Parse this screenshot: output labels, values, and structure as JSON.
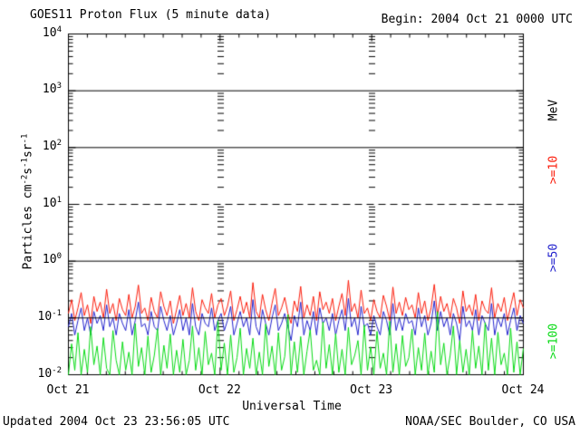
{
  "header": {
    "title": "GOES11 Proton Flux (5 minute data)",
    "begin": "Begin: 2004 Oct 21 0000 UTC"
  },
  "footer": {
    "updated": "Updated 2004 Oct 23 23:56:05 UTC",
    "credit": "NOAA/SEC Boulder, CO USA"
  },
  "chart_data": {
    "type": "line",
    "title": "GOES11 Proton Flux (5 minute data)",
    "xlabel": "Universal Time",
    "ylabel": {
      "text": "Particles cm-2s-1sr-1",
      "parts": [
        {
          "t": "Particles cm",
          "sup": false
        },
        {
          "t": "-2",
          "sup": true
        },
        {
          "t": "s",
          "sup": false
        },
        {
          "t": "-1",
          "sup": true
        },
        {
          "t": "sr",
          "sup": false
        },
        {
          "t": "-1",
          "sup": true
        }
      ]
    },
    "x_tick_labels": [
      "Oct 21",
      "Oct 22",
      "Oct 23",
      "Oct 24"
    ],
    "x_range_days": 3,
    "x_minor_tick_hours": 3,
    "y_axis": {
      "scale": "log",
      "exp_min": -2,
      "exp_max": 4,
      "tick_exponents": [
        4,
        3,
        2,
        1,
        0,
        -1,
        -2
      ]
    },
    "grid": {
      "solid_exponents": [
        3,
        2,
        0
      ],
      "dashed_exponents": [
        1
      ],
      "solid_over_data_exponents": [
        -1
      ],
      "interior_minor_tick_day_positions": [
        1,
        2
      ]
    },
    "right_labels": {
      "unit": {
        "label": "MeV",
        "color": "#000000",
        "y_center": 122
      },
      "entries": [
        {
          "label": ">=10",
          "color": "#fb1c0b",
          "y_center": 188
        },
        {
          "label": ">=50",
          "color": "#2222cd",
          "y_center": 285
        },
        {
          "label": ">=100",
          "color": "#07da14",
          "y_center": 377
        }
      ]
    },
    "sample_interval_minutes": 30,
    "series": [
      {
        "name": ">=10 MeV",
        "color": "#fb1c0b",
        "values": [
          0.12,
          0.21,
          0.09,
          0.15,
          0.28,
          0.11,
          0.17,
          0.08,
          0.24,
          0.13,
          0.19,
          0.1,
          0.32,
          0.12,
          0.18,
          0.09,
          0.22,
          0.14,
          0.11,
          0.26,
          0.1,
          0.16,
          0.38,
          0.12,
          0.15,
          0.09,
          0.23,
          0.13,
          0.1,
          0.29,
          0.16,
          0.11,
          0.2,
          0.08,
          0.14,
          0.25,
          0.11,
          0.18,
          0.1,
          0.34,
          0.13,
          0.09,
          0.21,
          0.15,
          0.12,
          0.27,
          0.1,
          0.17,
          0.22,
          0.11,
          0.16,
          0.3,
          0.09,
          0.14,
          0.24,
          0.12,
          0.19,
          0.1,
          0.42,
          0.13,
          0.1,
          0.26,
          0.14,
          0.09,
          0.18,
          0.33,
          0.11,
          0.15,
          0.23,
          0.12,
          0.08,
          0.2,
          0.13,
          0.36,
          0.1,
          0.17,
          0.11,
          0.24,
          0.09,
          0.29,
          0.14,
          0.19,
          0.12,
          0.22,
          0.09,
          0.16,
          0.27,
          0.11,
          0.46,
          0.13,
          0.18,
          0.1,
          0.31,
          0.12,
          0.15,
          0.09,
          0.21,
          0.13,
          0.1,
          0.25,
          0.16,
          0.09,
          0.35,
          0.12,
          0.19,
          0.11,
          0.23,
          0.14,
          0.17,
          0.1,
          0.28,
          0.12,
          0.2,
          0.09,
          0.15,
          0.39,
          0.11,
          0.24,
          0.13,
          0.18,
          0.1,
          0.22,
          0.15,
          0.08,
          0.3,
          0.13,
          0.17,
          0.11,
          0.26,
          0.09,
          0.2,
          0.14,
          0.12,
          0.34,
          0.1,
          0.18,
          0.13,
          0.23,
          0.09,
          0.16,
          0.28,
          0.11,
          0.21,
          0.15
        ]
      },
      {
        "name": ">=50 MeV",
        "color": "#2222cd",
        "values": [
          0.07,
          0.12,
          0.05,
          0.09,
          0.15,
          0.06,
          0.1,
          0.05,
          0.13,
          0.08,
          0.11,
          0.06,
          0.17,
          0.07,
          0.1,
          0.05,
          0.12,
          0.08,
          0.06,
          0.14,
          0.05,
          0.09,
          0.19,
          0.07,
          0.08,
          0.05,
          0.13,
          0.07,
          0.06,
          0.16,
          0.09,
          0.06,
          0.11,
          0.05,
          0.08,
          0.14,
          0.06,
          0.1,
          0.05,
          0.18,
          0.07,
          0.05,
          0.12,
          0.08,
          0.07,
          0.15,
          0.06,
          0.09,
          0.12,
          0.06,
          0.09,
          0.16,
          0.05,
          0.08,
          0.13,
          0.07,
          0.1,
          0.05,
          0.21,
          0.07,
          0.05,
          0.14,
          0.08,
          0.05,
          0.1,
          0.17,
          0.06,
          0.08,
          0.12,
          0.07,
          0.04,
          0.11,
          0.07,
          0.19,
          0.05,
          0.09,
          0.06,
          0.13,
          0.05,
          0.15,
          0.08,
          0.1,
          0.06,
          0.12,
          0.05,
          0.09,
          0.14,
          0.06,
          0.22,
          0.07,
          0.1,
          0.05,
          0.16,
          0.07,
          0.08,
          0.05,
          0.11,
          0.07,
          0.05,
          0.13,
          0.09,
          0.05,
          0.18,
          0.06,
          0.1,
          0.06,
          0.12,
          0.08,
          0.09,
          0.05,
          0.15,
          0.07,
          0.11,
          0.05,
          0.08,
          0.2,
          0.06,
          0.13,
          0.07,
          0.1,
          0.05,
          0.12,
          0.08,
          0.04,
          0.16,
          0.07,
          0.09,
          0.06,
          0.14,
          0.05,
          0.11,
          0.08,
          0.06,
          0.18,
          0.05,
          0.1,
          0.07,
          0.12,
          0.05,
          0.09,
          0.15,
          0.06,
          0.11,
          0.08
        ]
      },
      {
        "name": ">=100 MeV",
        "color": "#07da14",
        "values": [
          0.01,
          0.035,
          0.012,
          0.055,
          0.01,
          0.028,
          0.011,
          0.07,
          0.015,
          0.032,
          0.01,
          0.045,
          0.013,
          0.01,
          0.06,
          0.018,
          0.01,
          0.038,
          0.012,
          0.025,
          0.01,
          0.08,
          0.014,
          0.03,
          0.01,
          0.048,
          0.011,
          0.022,
          0.065,
          0.01,
          0.033,
          0.013,
          0.052,
          0.01,
          0.027,
          0.011,
          0.042,
          0.01,
          0.018,
          0.072,
          0.012,
          0.03,
          0.01,
          0.058,
          0.015,
          0.024,
          0.01,
          0.09,
          0.012,
          0.036,
          0.01,
          0.05,
          0.011,
          0.02,
          0.066,
          0.01,
          0.029,
          0.013,
          0.044,
          0.01,
          0.025,
          0.01,
          0.078,
          0.014,
          0.032,
          0.01,
          0.055,
          0.012,
          0.021,
          0.115,
          0.01,
          0.038,
          0.011,
          0.047,
          0.01,
          0.026,
          0.062,
          0.012,
          0.018,
          0.01,
          0.085,
          0.013,
          0.034,
          0.01,
          0.053,
          0.011,
          0.028,
          0.01,
          0.068,
          0.015,
          0.022,
          0.04,
          0.01,
          0.075,
          0.012,
          0.031,
          0.01,
          0.058,
          0.013,
          0.024,
          0.01,
          0.088,
          0.011,
          0.035,
          0.01,
          0.049,
          0.014,
          0.02,
          0.064,
          0.01,
          0.03,
          0.012,
          0.054,
          0.01,
          0.026,
          0.011,
          0.13,
          0.015,
          0.036,
          0.01,
          0.022,
          0.072,
          0.01,
          0.04,
          0.011,
          0.028,
          0.01,
          0.06,
          0.013,
          0.032,
          0.01,
          0.083,
          0.012,
          0.044,
          0.01,
          0.056,
          0.015,
          0.024,
          0.01,
          0.066,
          0.011,
          0.038,
          0.01,
          0.029
        ]
      }
    ]
  }
}
